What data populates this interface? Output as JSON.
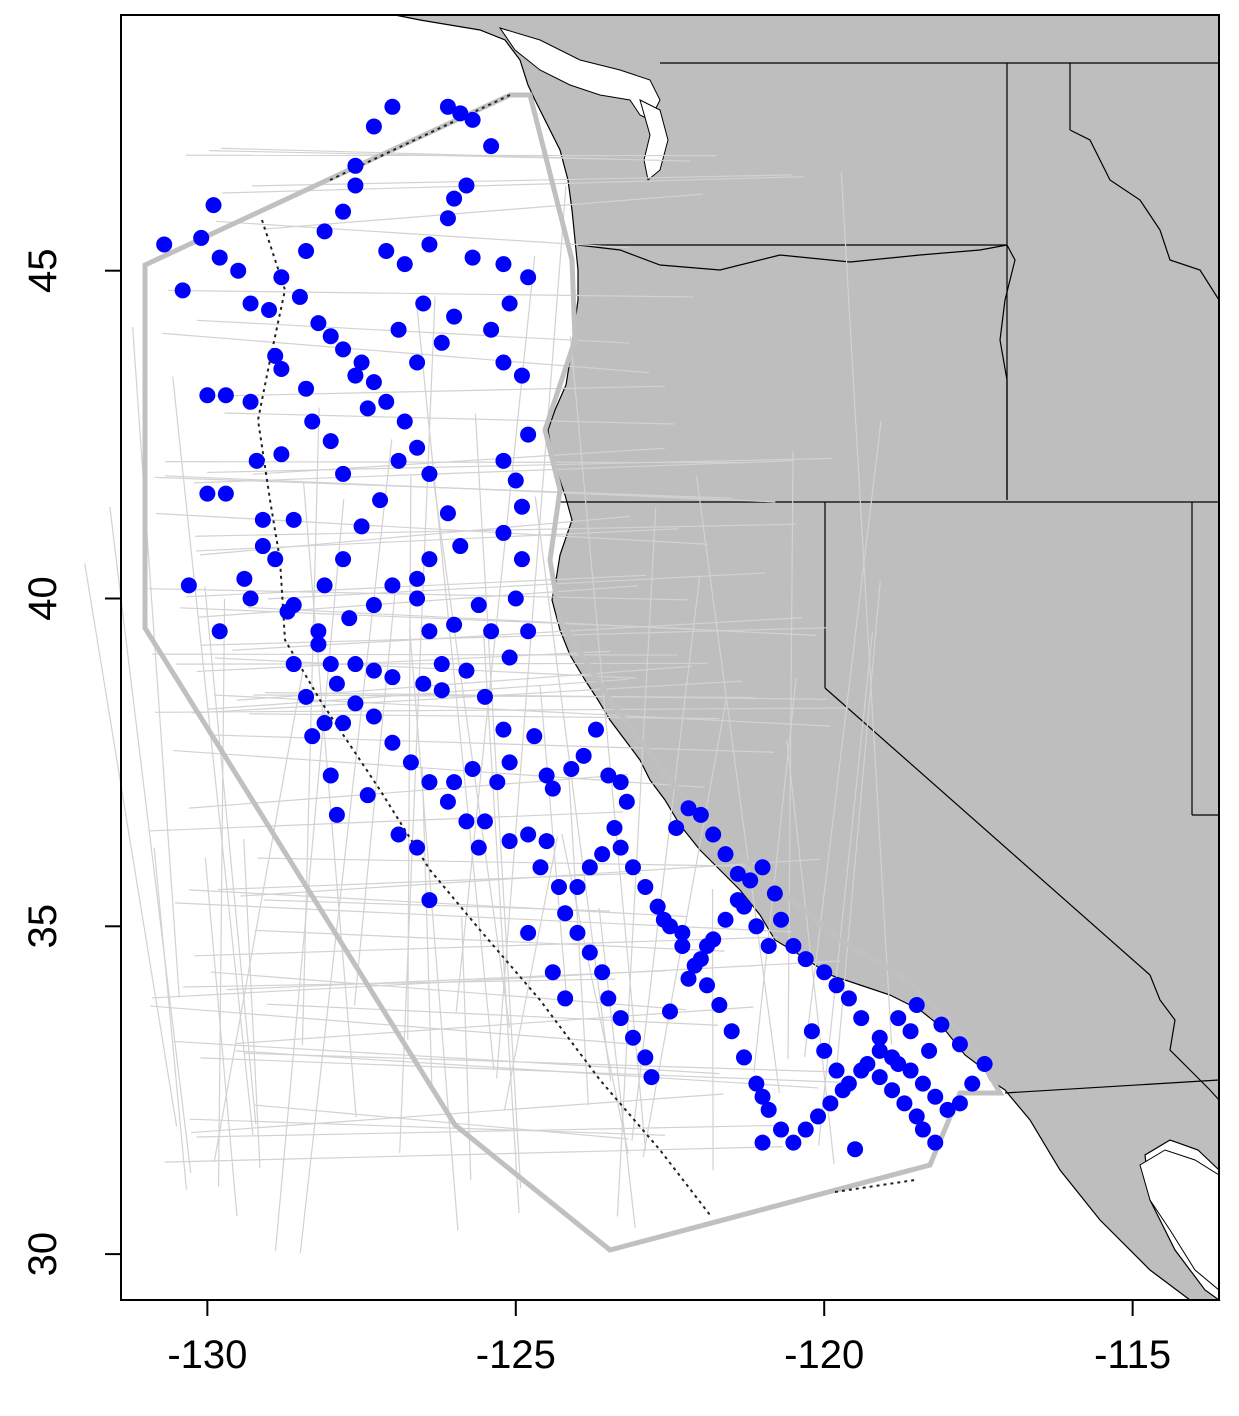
{
  "map": {
    "type": "scatter-map",
    "region": "US West Coast",
    "x_axis": {
      "range": [
        -131.4,
        -113.6
      ],
      "ticks": [
        -130,
        -125,
        -120,
        -115
      ],
      "tick_labels": [
        "-130",
        "-125",
        "-120",
        "-115"
      ]
    },
    "y_axis": {
      "range": [
        29.3,
        48.9
      ],
      "ticks": [
        30,
        35,
        40,
        45
      ],
      "tick_labels": [
        "30",
        "35",
        "40",
        "45"
      ]
    },
    "grid": false,
    "colors": {
      "land": "#bebebe",
      "ocean": "#ffffff",
      "study_boundary": "#c0c0c0",
      "transects": "#cfcfcf",
      "points": "#0000ff",
      "borders": "#000000"
    },
    "legend": "none"
  },
  "chart_data": {
    "type": "scatter",
    "series": [
      {
        "values": [
          [
            -130.7,
            45.4
          ],
          [
            -130.4,
            44.7
          ],
          [
            -129.9,
            46
          ],
          [
            -130.1,
            45.5
          ],
          [
            -129.8,
            45.2
          ],
          [
            -129.5,
            45
          ],
          [
            -129.3,
            44.5
          ],
          [
            -129,
            44.4
          ],
          [
            -130,
            43.1
          ],
          [
            -129.7,
            43.1
          ],
          [
            -129.3,
            43
          ],
          [
            -128.9,
            43.7
          ],
          [
            -128.8,
            42.2
          ],
          [
            -129.2,
            42.1
          ],
          [
            -130,
            41.6
          ],
          [
            -129.7,
            41.6
          ],
          [
            -129.1,
            41.2
          ],
          [
            -129.1,
            40.8
          ],
          [
            -129.4,
            40.3
          ],
          [
            -129.3,
            40
          ],
          [
            -130.3,
            40.2
          ],
          [
            -129.8,
            39.5
          ],
          [
            -128.6,
            39.9
          ],
          [
            -128.6,
            39
          ],
          [
            -128.4,
            38.5
          ],
          [
            -128.3,
            37.9
          ],
          [
            -128,
            37.3
          ],
          [
            -127.9,
            36.7
          ],
          [
            -127.4,
            37
          ],
          [
            -128.1,
            38.1
          ],
          [
            -127.8,
            38.1
          ],
          [
            -128.2,
            39.3
          ],
          [
            -128,
            39
          ],
          [
            -127.6,
            39
          ],
          [
            -127.3,
            38.9
          ],
          [
            -127,
            38.8
          ],
          [
            -126.5,
            38.7
          ],
          [
            -126.2,
            38.6
          ],
          [
            -126.2,
            39
          ],
          [
            -126.4,
            39.5
          ],
          [
            -126.6,
            40
          ],
          [
            -126.6,
            40.3
          ],
          [
            -126.4,
            40.6
          ],
          [
            -125.9,
            40.8
          ],
          [
            -126.1,
            41.3
          ],
          [
            -126.4,
            41.9
          ],
          [
            -126.6,
            42.3
          ],
          [
            -126.8,
            42.7
          ],
          [
            -127.1,
            43
          ],
          [
            -127.3,
            43.3
          ],
          [
            -127.5,
            43.6
          ],
          [
            -127.8,
            43.8
          ],
          [
            -128,
            44
          ],
          [
            -128.2,
            44.2
          ],
          [
            -128.5,
            44.6
          ],
          [
            -128.8,
            44.9
          ],
          [
            -128.4,
            45.3
          ],
          [
            -128.1,
            45.6
          ],
          [
            -127.8,
            45.9
          ],
          [
            -127.6,
            46.3
          ],
          [
            -127.6,
            46.6
          ],
          [
            -127.3,
            47.2
          ],
          [
            -127,
            47.5
          ],
          [
            -126.1,
            47.5
          ],
          [
            -125.9,
            47.4
          ],
          [
            -125.7,
            47.3
          ],
          [
            -125.4,
            46.9
          ],
          [
            -126,
            46.1
          ],
          [
            -125.7,
            45.2
          ],
          [
            -125.2,
            45.1
          ],
          [
            -124.8,
            44.9
          ],
          [
            -125.1,
            44.5
          ],
          [
            -125.4,
            44.1
          ],
          [
            -125.2,
            43.6
          ],
          [
            -124.9,
            43.4
          ],
          [
            -124.8,
            42.5
          ],
          [
            -125.2,
            42.1
          ],
          [
            -125,
            41.8
          ],
          [
            -124.9,
            41.4
          ],
          [
            -125.2,
            41
          ],
          [
            -124.9,
            40.6
          ],
          [
            -125,
            40
          ],
          [
            -124.8,
            39.5
          ],
          [
            -125.1,
            39.1
          ],
          [
            -125.4,
            39.5
          ],
          [
            -125.6,
            39.9
          ],
          [
            -126,
            39.6
          ],
          [
            -125.8,
            38.9
          ],
          [
            -125.5,
            38.5
          ],
          [
            -125.2,
            38
          ],
          [
            -125.1,
            37.5
          ],
          [
            -125.3,
            37.2
          ],
          [
            -125.5,
            36.6
          ],
          [
            -125.1,
            36.3
          ],
          [
            -124.8,
            36.4
          ],
          [
            -124.5,
            36.3
          ],
          [
            -124.4,
            37.1
          ],
          [
            -124.7,
            37.9
          ],
          [
            -124.5,
            37.3
          ],
          [
            -124.1,
            37.4
          ],
          [
            -123.9,
            37.6
          ],
          [
            -123.7,
            38
          ],
          [
            -123.5,
            37.3
          ],
          [
            -123.3,
            37.2
          ],
          [
            -123.2,
            36.9
          ],
          [
            -123.4,
            36.5
          ],
          [
            -123.6,
            36.1
          ],
          [
            -123.8,
            35.9
          ],
          [
            -124,
            35.6
          ],
          [
            -124.2,
            35.2
          ],
          [
            -124,
            34.9
          ],
          [
            -123.8,
            34.6
          ],
          [
            -123.6,
            34.3
          ],
          [
            -123.5,
            33.9
          ],
          [
            -123.3,
            33.6
          ],
          [
            -123.1,
            33.3
          ],
          [
            -122.9,
            33
          ],
          [
            -122.8,
            32.7
          ],
          [
            -122.5,
            33.7
          ],
          [
            -122.2,
            34.2
          ],
          [
            -122,
            34.5
          ],
          [
            -121.8,
            34.8
          ],
          [
            -121.6,
            35.1
          ],
          [
            -121.4,
            35.4
          ],
          [
            -121.2,
            35.7
          ],
          [
            -121,
            35.9
          ],
          [
            -120.8,
            35.5
          ],
          [
            -120.7,
            35.1
          ],
          [
            -120.5,
            34.7
          ],
          [
            -120.3,
            34.5
          ],
          [
            -120,
            34.3
          ],
          [
            -119.8,
            34.1
          ],
          [
            -119.6,
            33.9
          ],
          [
            -119.4,
            33.6
          ],
          [
            -119.1,
            33.3
          ],
          [
            -118.9,
            33
          ],
          [
            -118.6,
            32.8
          ],
          [
            -118.4,
            32.6
          ],
          [
            -118.2,
            32.4
          ],
          [
            -118,
            32.2
          ],
          [
            -117.8,
            32.3
          ],
          [
            -117.6,
            32.6
          ],
          [
            -117.4,
            32.9
          ],
          [
            -117.8,
            33.2
          ],
          [
            -118.1,
            33.5
          ],
          [
            -118.5,
            33.8
          ],
          [
            -118.8,
            33.6
          ],
          [
            -119.1,
            33.1
          ],
          [
            -119.4,
            32.8
          ],
          [
            -119.7,
            32.5
          ],
          [
            -119.9,
            32.3
          ],
          [
            -120.1,
            32.1
          ],
          [
            -120.3,
            31.9
          ],
          [
            -120.5,
            31.7
          ],
          [
            -120.7,
            31.9
          ],
          [
            -120.9,
            32.2
          ],
          [
            -121.1,
            32.6
          ],
          [
            -121.3,
            33
          ],
          [
            -121.5,
            33.4
          ],
          [
            -121.7,
            33.8
          ],
          [
            -121.9,
            34.1
          ],
          [
            -122.1,
            34.4
          ],
          [
            -122.3,
            34.7
          ],
          [
            -122.5,
            35
          ],
          [
            -122.7,
            35.3
          ],
          [
            -122.9,
            35.6
          ],
          [
            -123.1,
            35.9
          ],
          [
            -123.3,
            36.2
          ],
          [
            -122.4,
            36.5
          ],
          [
            -122.2,
            36.8
          ],
          [
            -122,
            36.7
          ],
          [
            -121.8,
            36.4
          ],
          [
            -121.6,
            36.1
          ],
          [
            -121.4,
            35.8
          ],
          [
            -121.3,
            35.3
          ],
          [
            -121.1,
            35
          ],
          [
            -120.9,
            34.7
          ],
          [
            -120.2,
            33.4
          ],
          [
            -120,
            33.1
          ],
          [
            -119.8,
            32.8
          ],
          [
            -119.6,
            32.6
          ],
          [
            -119.3,
            32.9
          ],
          [
            -119.1,
            32.7
          ],
          [
            -118.9,
            32.5
          ],
          [
            -118.7,
            32.3
          ],
          [
            -118.5,
            32.1
          ],
          [
            -118.4,
            31.9
          ],
          [
            -118.2,
            31.7
          ],
          [
            -118.3,
            33.1
          ],
          [
            -118.6,
            33.4
          ],
          [
            -118.8,
            32.9
          ],
          [
            -119.5,
            31.6
          ],
          [
            -121,
            31.7
          ],
          [
            -121,
            32.4
          ],
          [
            -121.9,
            34.7
          ],
          [
            -122.3,
            34.9
          ],
          [
            -122.6,
            35.1
          ],
          [
            -126.9,
            42.1
          ],
          [
            -127.2,
            41.5
          ],
          [
            -127.5,
            41.1
          ],
          [
            -127.8,
            40.6
          ],
          [
            -128.1,
            40.2
          ],
          [
            -127.7,
            39.7
          ],
          [
            -127.3,
            39.9
          ],
          [
            -127,
            40.2
          ],
          [
            -127.8,
            41.9
          ],
          [
            -128,
            42.4
          ],
          [
            -127.4,
            42.9
          ],
          [
            -127.6,
            43.4
          ],
          [
            -126.9,
            44.1
          ],
          [
            -126.6,
            43.6
          ],
          [
            -126.2,
            43.9
          ],
          [
            -126,
            44.3
          ],
          [
            -126.5,
            44.5
          ],
          [
            -126.8,
            45.1
          ],
          [
            -127.1,
            45.3
          ],
          [
            -126.4,
            45.4
          ],
          [
            -126.1,
            45.8
          ],
          [
            -125.8,
            46.3
          ],
          [
            -128.8,
            43.5
          ],
          [
            -128.4,
            43.2
          ],
          [
            -128.3,
            42.7
          ],
          [
            -128.6,
            41.2
          ],
          [
            -128.9,
            40.6
          ],
          [
            -128.7,
            39.8
          ],
          [
            -128.2,
            39.5
          ],
          [
            -127.9,
            38.7
          ],
          [
            -127.6,
            38.4
          ],
          [
            -127.3,
            38.2
          ],
          [
            -127,
            37.8
          ],
          [
            -126.7,
            37.5
          ],
          [
            -126.4,
            37.2
          ],
          [
            -126.1,
            36.9
          ],
          [
            -125.8,
            36.6
          ],
          [
            -125.6,
            36.2
          ],
          [
            -126.6,
            36.2
          ],
          [
            -126.9,
            36.4
          ],
          [
            -126.4,
            35.4
          ],
          [
            -126,
            37.2
          ],
          [
            -125.7,
            37.4
          ],
          [
            -124.3,
            35.6
          ],
          [
            -124.6,
            35.9
          ],
          [
            -124.8,
            34.9
          ],
          [
            -124.4,
            34.3
          ],
          [
            -124.2,
            33.9
          ]
        ]
      }
    ]
  }
}
